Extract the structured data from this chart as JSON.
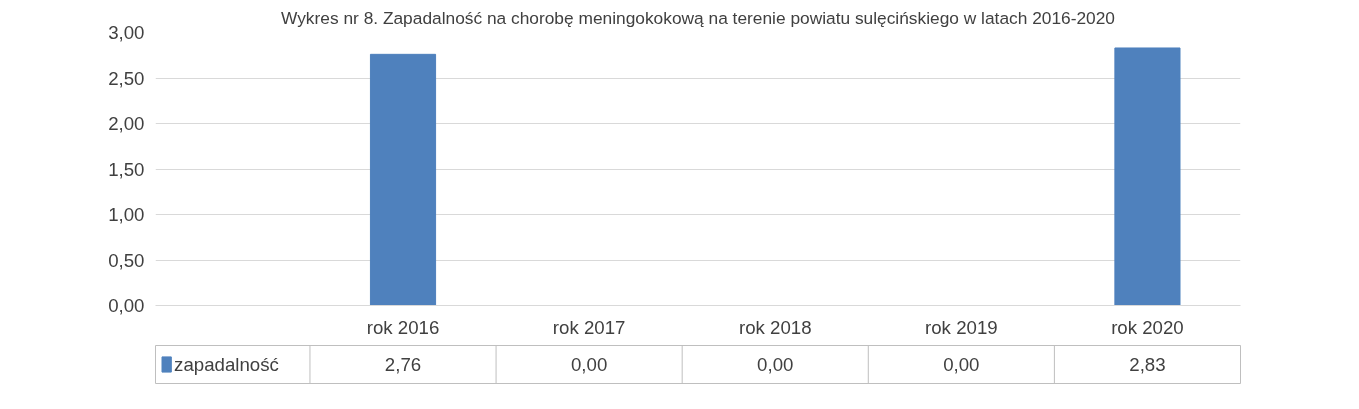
{
  "chart_data": {
    "type": "bar",
    "title": "Wykres nr 8. Zapadalność na chorobę meningokokową na terenie powiatu sulęcińskiego w latach 2016-2020",
    "categories": [
      "rok 2016",
      "rok 2017",
      "rok 2018",
      "rok 2019",
      "rok 2020"
    ],
    "series": [
      {
        "name": "zapadalność",
        "color": "#4f81bd",
        "values": [
          2.76,
          0,
          0,
          0,
          2.83
        ],
        "value_labels": [
          "2,76",
          "0,00",
          "0,00",
          "0,00",
          "2,83"
        ]
      }
    ],
    "ylim": [
      0,
      3
    ],
    "yticks": [
      {
        "value": 0,
        "label": "0,00"
      },
      {
        "value": 0.5,
        "label": "0,50"
      },
      {
        "value": 1,
        "label": "1,00"
      },
      {
        "value": 1.5,
        "label": "1,50"
      },
      {
        "value": 2,
        "label": "2,00"
      },
      {
        "value": 2.5,
        "label": "2,50"
      },
      {
        "value": 3,
        "label": "3,00"
      }
    ],
    "grid": "y",
    "legend": "bottom"
  }
}
